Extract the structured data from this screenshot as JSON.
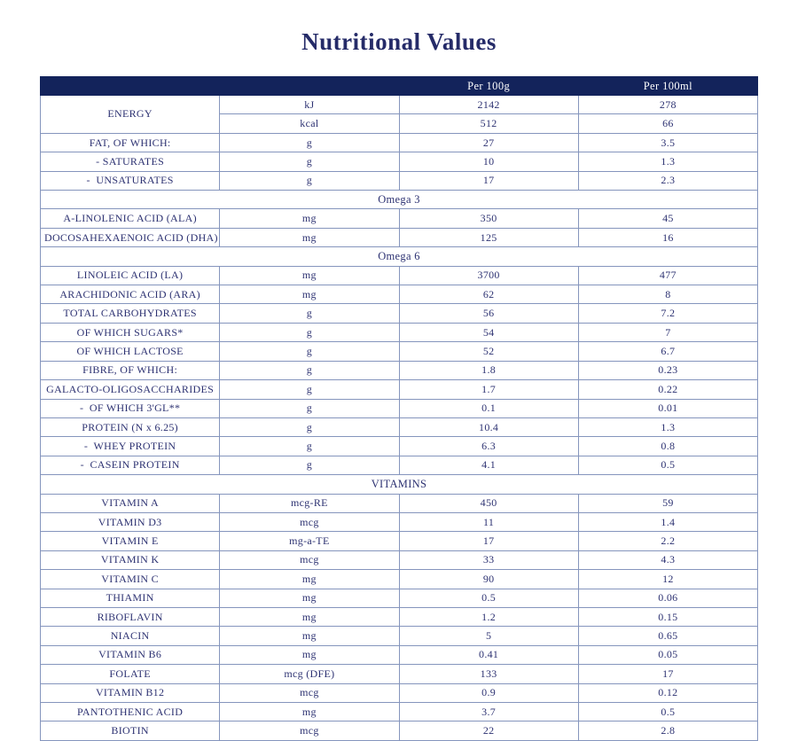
{
  "page": {
    "title": "Nutritional Values"
  },
  "colors": {
    "header_bg": "#13235b",
    "text": "#2d3272",
    "border": "#8595bd",
    "title_text": "#252b68",
    "header_text": "#ffffff"
  },
  "table": {
    "columns": {
      "label": "",
      "unit": "",
      "per100g": "Per 100g",
      "per100ml": "Per 100ml"
    },
    "rows": [
      {
        "type": "data",
        "label": "ENERGY",
        "labelRowspan": 2,
        "unit": "kJ",
        "per100g": "2142",
        "per100ml": "278"
      },
      {
        "type": "data",
        "label": null,
        "unit": "kcal",
        "per100g": "512",
        "per100ml": "66"
      },
      {
        "type": "data",
        "label": "FAT, OF WHICH:",
        "unit": "g",
        "per100g": "27",
        "per100ml": "3.5"
      },
      {
        "type": "data",
        "label": "- SATURATES",
        "unit": "g",
        "per100g": "10",
        "per100ml": "1.3"
      },
      {
        "type": "data",
        "label": "-  UNSATURATES",
        "unit": "g",
        "per100g": "17",
        "per100ml": "2.3"
      },
      {
        "type": "section",
        "label": "Omega 3"
      },
      {
        "type": "data",
        "label": "A-LINOLENIC ACID (ALA)",
        "unit": "mg",
        "per100g": "350",
        "per100ml": "45"
      },
      {
        "type": "data",
        "label": "DOCOSAHEXAENOIC ACID (DHA)",
        "unit": "mg",
        "per100g": "125",
        "per100ml": "16"
      },
      {
        "type": "section",
        "label": "Omega 6"
      },
      {
        "type": "data",
        "label": "LINOLEIC ACID (LA)",
        "unit": "mg",
        "per100g": "3700",
        "per100ml": "477"
      },
      {
        "type": "data",
        "label": "ARACHIDONIC ACID (ARA)",
        "unit": "mg",
        "per100g": "62",
        "per100ml": "8"
      },
      {
        "type": "data",
        "label": "TOTAL CARBOHYDRATES",
        "unit": "g",
        "per100g": "56",
        "per100ml": "7.2"
      },
      {
        "type": "data",
        "label": "OF WHICH SUGARS*",
        "unit": "g",
        "per100g": "54",
        "per100ml": "7"
      },
      {
        "type": "data",
        "label": "OF WHICH LACTOSE",
        "unit": "g",
        "per100g": "52",
        "per100ml": "6.7"
      },
      {
        "type": "data",
        "label": "FIBRE, OF WHICH:",
        "unit": "g",
        "per100g": "1.8",
        "per100ml": "0.23"
      },
      {
        "type": "data",
        "label": "GALACTO-OLIGOSACCHARIDES",
        "unit": "g",
        "per100g": "1.7",
        "per100ml": "0.22"
      },
      {
        "type": "data",
        "label": "-  OF WHICH 3'GL**",
        "unit": "g",
        "per100g": "0.1",
        "per100ml": "0.01"
      },
      {
        "type": "data",
        "label": "PROTEIN (N x 6.25)",
        "unit": "g",
        "per100g": "10.4",
        "per100ml": "1.3"
      },
      {
        "type": "data",
        "label": "-  WHEY PROTEIN",
        "unit": "g",
        "per100g": "6.3",
        "per100ml": "0.8"
      },
      {
        "type": "data",
        "label": "-  CASEIN PROTEIN",
        "unit": "g",
        "per100g": "4.1",
        "per100ml": "0.5"
      },
      {
        "type": "section",
        "label": "VITAMINS"
      },
      {
        "type": "data",
        "label": "VITAMIN A",
        "unit": "mcg-RE",
        "per100g": "450",
        "per100ml": "59"
      },
      {
        "type": "data",
        "label": "VITAMIN D3",
        "unit": "mcg",
        "per100g": "11",
        "per100ml": "1.4"
      },
      {
        "type": "data",
        "label": "VITAMIN E",
        "unit": "mg-a-TE",
        "per100g": "17",
        "per100ml": "2.2"
      },
      {
        "type": "data",
        "label": "VITAMIN K",
        "unit": "mcg",
        "per100g": "33",
        "per100ml": "4.3"
      },
      {
        "type": "data",
        "label": "VITAMIN C",
        "unit": "mg",
        "per100g": "90",
        "per100ml": "12"
      },
      {
        "type": "data",
        "label": "THIAMIN",
        "unit": "mg",
        "per100g": "0.5",
        "per100ml": "0.06"
      },
      {
        "type": "data",
        "label": "RIBOFLAVIN",
        "unit": "mg",
        "per100g": "1.2",
        "per100ml": "0.15"
      },
      {
        "type": "data",
        "label": "NIACIN",
        "unit": "mg",
        "per100g": "5",
        "per100ml": "0.65"
      },
      {
        "type": "data",
        "label": "VITAMIN B6",
        "unit": "mg",
        "per100g": "0.41",
        "per100ml": "0.05"
      },
      {
        "type": "data",
        "label": "FOLATE",
        "unit": "mcg (DFE)",
        "per100g": "133",
        "per100ml": "17"
      },
      {
        "type": "data",
        "label": "VITAMIN B12",
        "unit": "mcg",
        "per100g": "0.9",
        "per100ml": "0.12"
      },
      {
        "type": "data",
        "label": "PANTOTHENIC ACID",
        "unit": "mg",
        "per100g": "3.7",
        "per100ml": "0.5"
      },
      {
        "type": "data",
        "label": "BIOTIN",
        "unit": "mcg",
        "per100g": "22",
        "per100ml": "2.8"
      }
    ]
  }
}
